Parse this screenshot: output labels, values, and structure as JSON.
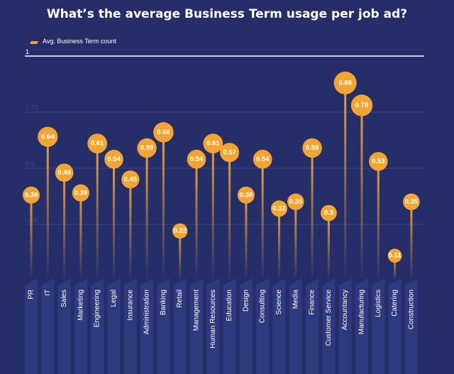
{
  "chart_data": {
    "type": "lollipop",
    "title": "What’s the average Business Term usage per job ad?",
    "legend": {
      "label": "Avg. Business Term count",
      "placement": "top-left"
    },
    "ylim": [
      0,
      1
    ],
    "yticks": [
      {
        "value": 1,
        "label": "1"
      },
      {
        "value": 0.75,
        "label": "0.75"
      },
      {
        "value": 0.5,
        "label": "0.5"
      },
      {
        "value": 0.25,
        "label": "0.25"
      }
    ],
    "grid": true,
    "categories": [
      "PR",
      "IT",
      "Sales",
      "Marketing",
      "Engineering",
      "Legal",
      "Insurance",
      "Administration",
      "Banking",
      "Retail",
      "Management",
      "Human Resources",
      "Education",
      "Design",
      "Consulting",
      "Science",
      "Media",
      "Finance",
      "Customer Service",
      "Accountancy",
      "Manufacturing",
      "Logistics",
      "Catering",
      "Construction"
    ],
    "values": [
      0.38,
      0.64,
      0.48,
      0.39,
      0.61,
      0.54,
      0.45,
      0.59,
      0.66,
      0.22,
      0.54,
      0.61,
      0.57,
      0.38,
      0.54,
      0.32,
      0.35,
      0.59,
      0.3,
      0.88,
      0.78,
      0.53,
      0.11,
      0.35
    ],
    "value_labels": [
      "0.38",
      "0.64",
      "0.48",
      "0.39",
      "0.61",
      "0.54",
      "0.45",
      "0.59",
      "0.66",
      "0.22",
      "0.54",
      "0.61",
      "0.57",
      "0.38",
      "0.54",
      "0.32",
      "0.35",
      "0.59",
      "0.3",
      "0.88",
      "0.78",
      "0.53",
      "0.11",
      "0.35"
    ],
    "colors": {
      "background": "#262e6a",
      "marker": "#f2a531",
      "label_band": "#2f3a7e",
      "gridline": "#3a4488",
      "top_line": "#ffffff",
      "text": "#ffffff",
      "tick_text": "#3c4690"
    }
  }
}
